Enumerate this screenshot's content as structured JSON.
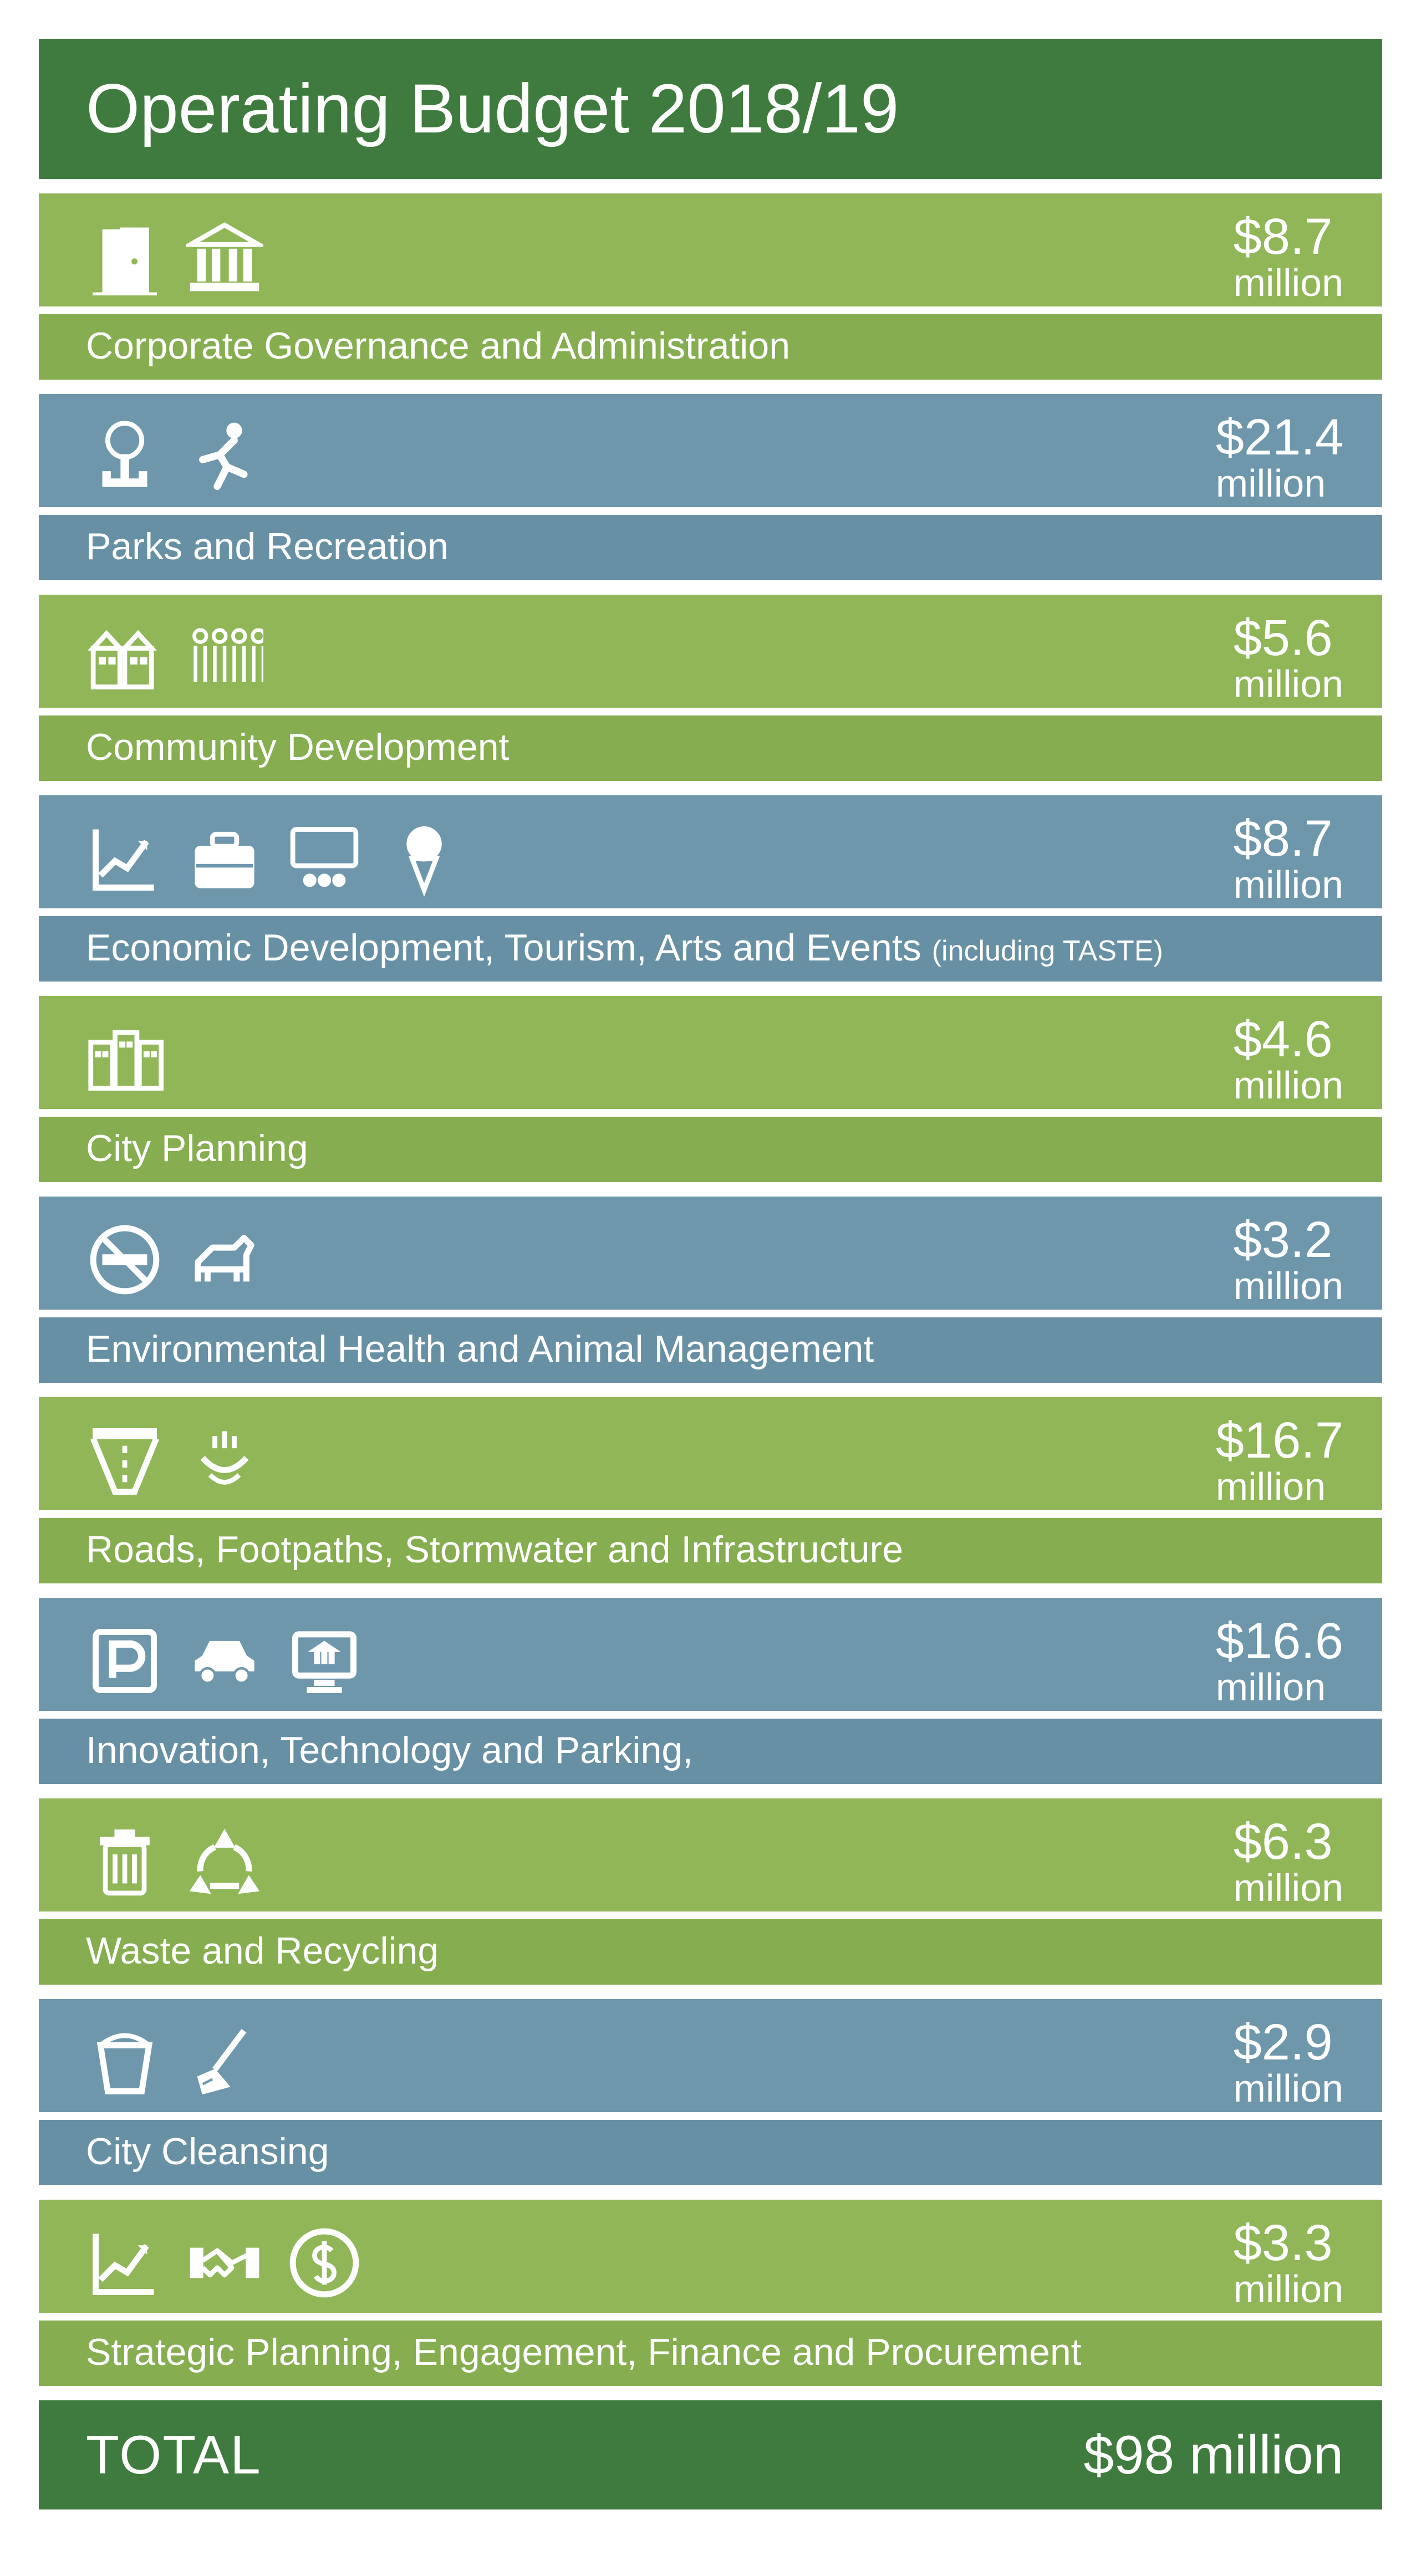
{
  "colors": {
    "header_bg": "#3f7b3f",
    "green_top": "#90b658",
    "green_bot": "#86ad4f",
    "blue_top": "#6f97ac",
    "blue_bot": "#6890a5",
    "total_bg": "#3f7b3f",
    "page_bg": "#ffffff",
    "text": "#ffffff"
  },
  "title": "Operating Budget 2018/19",
  "rows": [
    {
      "color": "green",
      "icons": [
        "door",
        "institution"
      ],
      "amount": "$8.7",
      "unit": "million",
      "label": "Corporate Governance and Administration",
      "suffix": ""
    },
    {
      "color": "blue",
      "icons": [
        "park-tree",
        "runner"
      ],
      "amount": "$21.4",
      "unit": "million",
      "label": "Parks and Recreation",
      "suffix": ""
    },
    {
      "color": "green",
      "icons": [
        "houses",
        "people-group"
      ],
      "amount": "$5.6",
      "unit": "million",
      "label": "Community Development",
      "suffix": ""
    },
    {
      "color": "blue",
      "icons": [
        "growth-chart",
        "briefcase",
        "audience",
        "icecream"
      ],
      "amount": "$8.7",
      "unit": "million",
      "label": "Economic Development, Tourism, Arts and Events ",
      "suffix": "(including TASTE)"
    },
    {
      "color": "green",
      "icons": [
        "city-blocks"
      ],
      "amount": "$4.6",
      "unit": "million",
      "label": "City Planning",
      "suffix": ""
    },
    {
      "color": "blue",
      "icons": [
        "no-smoking",
        "dog"
      ],
      "amount": "$3.2",
      "unit": "million",
      "label": "Environmental Health and Animal Management",
      "suffix": ""
    },
    {
      "color": "green",
      "icons": [
        "road",
        "drainage"
      ],
      "amount": "$16.7",
      "unit": "million",
      "label": "Roads, Footpaths, Stormwater and Infrastructure",
      "suffix": ""
    },
    {
      "color": "blue",
      "icons": [
        "parking",
        "car",
        "monitor"
      ],
      "amount": "$16.6",
      "unit": "million",
      "label": "Innovation, Technology and Parking,",
      "suffix": ""
    },
    {
      "color": "green",
      "icons": [
        "trash",
        "recycle"
      ],
      "amount": "$6.3",
      "unit": "million",
      "label": "Waste and Recycling",
      "suffix": ""
    },
    {
      "color": "blue",
      "icons": [
        "bucket",
        "broom"
      ],
      "amount": "$2.9",
      "unit": "million",
      "label": "City Cleansing",
      "suffix": ""
    },
    {
      "color": "green",
      "icons": [
        "growth-chart",
        "handshake",
        "dollar-circle"
      ],
      "amount": "$3.3",
      "unit": "million",
      "label": "Strategic Planning, Engagement, Finance and Procurement",
      "suffix": ""
    }
  ],
  "total": {
    "label": "TOTAL",
    "value": "$98 million"
  },
  "fontsize": {
    "title": 125,
    "amount": 92,
    "unit": 70,
    "label": 68,
    "suffix": 52,
    "total": 98
  }
}
